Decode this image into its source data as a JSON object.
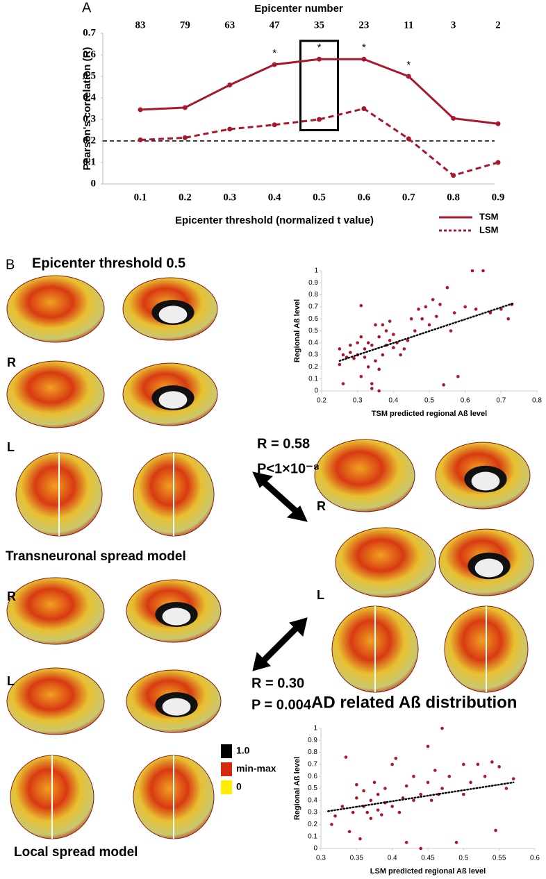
{
  "chart_data": [
    {
      "type": "line",
      "top_axis": {
        "title": "Epicenter number",
        "values": [
          83,
          79,
          63,
          47,
          35,
          23,
          11,
          3,
          2
        ]
      },
      "x_label": "Epicenter threshold (normalized t value)",
      "y_label": "Pearson's correlation (R)",
      "categories": [
        "0.1",
        "0.2",
        "0.3",
        "0.4",
        "0.5",
        "0.6",
        "0.7",
        "0.8",
        "0.9"
      ],
      "series": [
        {
          "name": "TSM",
          "color": "#a8182c",
          "style": "solid",
          "values": [
            0.345,
            0.355,
            0.46,
            0.555,
            0.58,
            0.58,
            0.5,
            0.305,
            0.28
          ]
        },
        {
          "name": "LSM",
          "color": "#a8182c",
          "style": "dashed",
          "values": [
            0.205,
            0.215,
            0.255,
            0.275,
            0.3,
            0.35,
            0.21,
            0.04,
            0.1
          ]
        }
      ],
      "reference_line": 0.2,
      "significance_marker": "*",
      "significant": [
        false,
        false,
        false,
        true,
        true,
        true,
        true,
        false,
        false
      ],
      "highlight": {
        "category": "0.5",
        "range": [
          0.25,
          0.665
        ]
      },
      "ylim": [
        0,
        0.7
      ],
      "yticks": [
        0,
        0.1,
        0.2,
        0.3,
        0.4,
        0.5,
        0.6,
        0.7
      ],
      "legend": "bottom-right"
    },
    {
      "type": "scatter",
      "color": "#a8182c",
      "x_label": "TSM predicted regional Aß level",
      "y_label": "Regional Aß level",
      "x": [
        0.25,
        0.25,
        0.26,
        0.26,
        0.27,
        0.28,
        0.28,
        0.29,
        0.3,
        0.3,
        0.31,
        0.31,
        0.32,
        0.32,
        0.33,
        0.33,
        0.34,
        0.34,
        0.35,
        0.35,
        0.36,
        0.36,
        0.37,
        0.37,
        0.38,
        0.38,
        0.39,
        0.39,
        0.4,
        0.4,
        0.41,
        0.42,
        0.43,
        0.44,
        0.45,
        0.46,
        0.47,
        0.48,
        0.49,
        0.5,
        0.51,
        0.52,
        0.53,
        0.55,
        0.56,
        0.57,
        0.58,
        0.6,
        0.62,
        0.63,
        0.65,
        0.67,
        0.7,
        0.72,
        0.73,
        0.31,
        0.34,
        0.36,
        0.54
      ],
      "values": [
        0.22,
        0.35,
        0.06,
        0.3,
        0.28,
        0.38,
        0.32,
        0.27,
        0.3,
        0.4,
        0.45,
        0.71,
        0.28,
        0.35,
        0.4,
        0.2,
        0.38,
        0.06,
        0.25,
        0.55,
        0.18,
        0.45,
        0.55,
        0.3,
        0.38,
        0.5,
        0.42,
        0.58,
        0.47,
        0.36,
        0.4,
        0.3,
        0.35,
        0.42,
        0.6,
        0.5,
        0.68,
        0.6,
        0.7,
        0.55,
        0.76,
        0.62,
        0.72,
        0.86,
        0.5,
        0.65,
        0.12,
        0.7,
        1.0,
        0.68,
        1.0,
        0.65,
        0.68,
        0.6,
        0.72,
        0.12,
        0.02,
        0.0,
        0.05
      ],
      "trendline": {
        "x": [
          0.25,
          0.735
        ],
        "values": [
          0.25,
          0.73
        ]
      },
      "xlim": [
        0.2,
        0.8
      ],
      "xticks": [
        0.2,
        0.3,
        0.4,
        0.5,
        0.6,
        0.7,
        0.8
      ],
      "ylim": [
        0,
        1
      ],
      "yticks": [
        0,
        0.1,
        0.2,
        0.3,
        0.4,
        0.5,
        0.6,
        0.7,
        0.8,
        0.9,
        1
      ]
    },
    {
      "type": "scatter",
      "color": "#a8182c",
      "x_label": "LSM predicted regional Aß level",
      "y_label": "Regional Aß level",
      "x": [
        0.315,
        0.32,
        0.33,
        0.335,
        0.34,
        0.345,
        0.35,
        0.35,
        0.355,
        0.36,
        0.36,
        0.365,
        0.37,
        0.37,
        0.375,
        0.38,
        0.38,
        0.385,
        0.39,
        0.39,
        0.4,
        0.4,
        0.405,
        0.41,
        0.415,
        0.42,
        0.42,
        0.43,
        0.43,
        0.44,
        0.44,
        0.45,
        0.45,
        0.455,
        0.46,
        0.465,
        0.47,
        0.47,
        0.48,
        0.49,
        0.5,
        0.5,
        0.51,
        0.52,
        0.53,
        0.54,
        0.545,
        0.55,
        0.56,
        0.57
      ],
      "values": [
        0.2,
        0.27,
        0.35,
        0.76,
        0.14,
        0.3,
        0.42,
        0.53,
        0.08,
        0.35,
        0.48,
        0.3,
        0.4,
        0.25,
        0.55,
        0.32,
        0.45,
        0.28,
        0.38,
        0.5,
        0.35,
        0.7,
        0.75,
        0.3,
        0.42,
        0.05,
        0.52,
        0.4,
        0.6,
        0.0,
        0.45,
        0.55,
        0.85,
        0.4,
        0.65,
        0.45,
        1.0,
        0.5,
        0.6,
        0.05,
        0.7,
        0.45,
        0.55,
        0.7,
        0.6,
        0.72,
        0.15,
        0.68,
        0.5,
        0.58
      ],
      "trendline": {
        "x": [
          0.31,
          0.57
        ],
        "values": [
          0.31,
          0.55
        ]
      },
      "xlim": [
        0.3,
        0.6
      ],
      "xticks": [
        0.3,
        0.35,
        0.4,
        0.45,
        0.5,
        0.55,
        0.6
      ],
      "ylim": [
        0,
        1
      ],
      "yticks": [
        0,
        0.1,
        0.2,
        0.3,
        0.4,
        0.5,
        0.6,
        0.7,
        0.8,
        0.9,
        1
      ]
    }
  ],
  "figure": {
    "panel_a": "A",
    "panel_b": "B",
    "panel_b_title": "Epicenter threshold 0.5",
    "tsm_title": "Transneuronal spread model",
    "lsm_title": "Local spread model",
    "ad_title": "AD related Aß distribution",
    "hemi_r": "R",
    "hemi_l": "L",
    "tsm_r": "R = 0.58",
    "tsm_p": "P<1×10⁻⁸",
    "lsm_r": "R = 0.30",
    "lsm_p": "P = 0.004",
    "colorbar": [
      {
        "label": "1.0",
        "color": "#000000"
      },
      {
        "label": "min-max",
        "color": "#d42a10"
      },
      {
        "label": "0",
        "color": "#ffee00"
      }
    ]
  }
}
